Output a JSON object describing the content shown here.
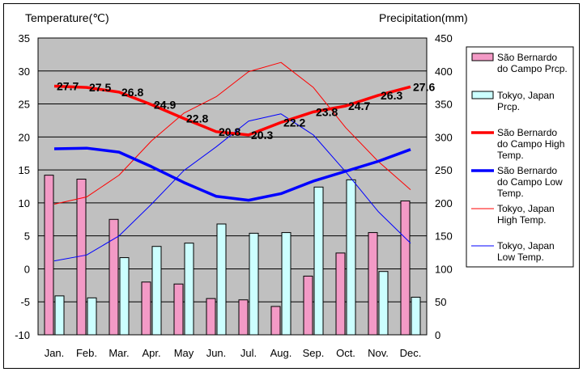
{
  "chart_data": {
    "type": "bar+line",
    "categories": [
      "Jan.",
      "Feb.",
      "Mar.",
      "Apr.",
      "May",
      "Jun.",
      "Jul.",
      "Aug.",
      "Sep.",
      "Oct.",
      "Nov.",
      "Dec."
    ],
    "y_left": {
      "label": "Temperature(℃)",
      "min": -10,
      "max": 35,
      "ticks": [
        35,
        30,
        25,
        20,
        15,
        10,
        5,
        0,
        -5,
        -10
      ]
    },
    "y_right": {
      "label": "Precipitation(mm)",
      "min": 0,
      "max": 450,
      "ticks": [
        450,
        400,
        350,
        300,
        250,
        200,
        150,
        100,
        50,
        0
      ]
    },
    "grid": true,
    "legend_position": "right",
    "bars": [
      {
        "name": "São Bernardo do Campo Prcp.",
        "legend_lines": [
          "São Bernardo",
          "do Campo Prcp."
        ],
        "color": "#f39ac6",
        "values": [
          242,
          236,
          175,
          80,
          77,
          55,
          53,
          43,
          89,
          124,
          155,
          203
        ]
      },
      {
        "name": "Tokyo, Japan Prcp.",
        "legend_lines": [
          "Tokyo, Japan",
          "Prcp."
        ],
        "color": "#ccffff",
        "values": [
          59,
          56,
          117,
          134,
          139,
          168,
          154,
          155,
          224,
          235,
          96,
          57
        ]
      }
    ],
    "lines": [
      {
        "name": "São Bernardo do Campo High Temp.",
        "legend_lines": [
          "São Bernardo",
          "do Campo High",
          "Temp."
        ],
        "color": "#ff0000",
        "width": 3.5,
        "values": [
          27.7,
          27.5,
          26.8,
          24.9,
          22.8,
          20.8,
          20.3,
          22.2,
          23.8,
          24.7,
          26.3,
          27.6
        ],
        "labels": [
          "27.7",
          "27.5",
          "26.8",
          "24.9",
          "22.8",
          "20.8",
          "20.3",
          "22.2",
          "23.8",
          "24.7",
          "26.3",
          "27.6"
        ]
      },
      {
        "name": "São Bernardo do Campo Low Temp.",
        "legend_lines": [
          "São Bernardo",
          "do Campo Low",
          "Temp."
        ],
        "color": "#0000ff",
        "width": 3.5,
        "values": [
          18.2,
          18.3,
          17.7,
          15.5,
          13.1,
          11.0,
          10.4,
          11.4,
          13.3,
          14.8,
          16.3,
          18.1
        ]
      },
      {
        "name": "Tokyo, Japan High Temp.",
        "legend_lines": [
          "Tokyo, Japan",
          "High Temp."
        ],
        "color": "#ff0000",
        "width": 1,
        "values": [
          9.8,
          10.9,
          14.2,
          19.4,
          23.6,
          26.1,
          29.9,
          31.3,
          27.5,
          21.4,
          16.3,
          12.0
        ]
      },
      {
        "name": "Tokyo, Japan Low Temp.",
        "legend_lines": [
          "Tokyo, Japan",
          "Low Temp."
        ],
        "color": "#0000ff",
        "width": 1,
        "values": [
          1.2,
          2.1,
          5.0,
          9.8,
          14.9,
          18.5,
          22.4,
          23.5,
          20.3,
          14.7,
          8.7,
          3.9
        ]
      }
    ]
  }
}
